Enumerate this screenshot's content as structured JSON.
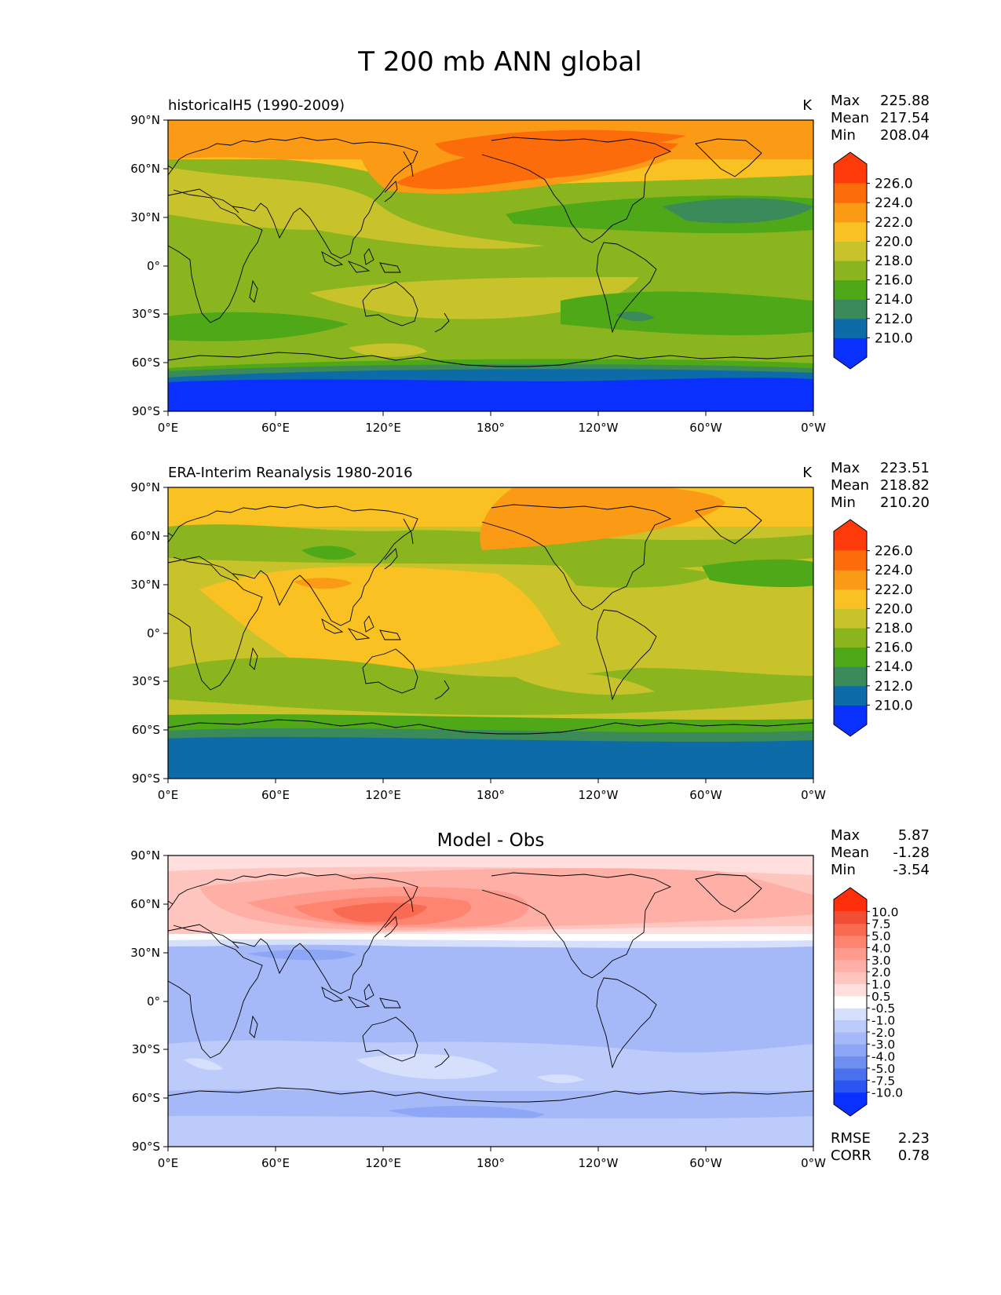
{
  "figure": {
    "title": "T 200 mb ANN global"
  },
  "axes": {
    "xticks": [
      "0°E",
      "60°E",
      "120°E",
      "180°",
      "120°W",
      "60°W",
      "0°W"
    ],
    "yticks": [
      "90°N",
      "60°N",
      "30°N",
      "0°",
      "30°S",
      "60°S",
      "90°S"
    ]
  },
  "colors": {
    "abs_levels": [
      "#0a30ff",
      "#0d6ba8",
      "#3a8a5a",
      "#4ea818",
      "#8ab51e",
      "#c8c32a",
      "#f9c121",
      "#fb9a14",
      "#fc6c0b",
      "#ff3a0a"
    ],
    "diff_levels": [
      "#0a30ff",
      "#2a55f0",
      "#4a70ee",
      "#6f8ff0",
      "#8da6f5",
      "#a5b8f7",
      "#bccbf9",
      "#d6e0fc",
      "#ffffff",
      "#ffdede",
      "#ffc6c0",
      "#ffb0a6",
      "#ff9a8c",
      "#ff8470",
      "#f96a52",
      "#f04f36",
      "#ff2d0a"
    ]
  },
  "chart_data": [
    {
      "type": "heatmap",
      "title": "historicalH5 (1990-2009)",
      "units": "K",
      "stats": {
        "max_label": "Max",
        "max": "225.88",
        "mean_label": "Mean",
        "mean": "217.54",
        "min_label": "Min",
        "min": "208.04"
      },
      "colorbar_ticks": [
        "226.0",
        "224.0",
        "222.0",
        "220.0",
        "218.0",
        "216.0",
        "214.0",
        "212.0",
        "210.0"
      ],
      "xlim": [
        0,
        360
      ],
      "ylim": [
        -90,
        90
      ]
    },
    {
      "type": "heatmap",
      "title": "ERA-Interim Reanalysis 1980-2016",
      "units": "K",
      "stats": {
        "max_label": "Max",
        "max": "223.51",
        "mean_label": "Mean",
        "mean": "218.82",
        "min_label": "Min",
        "min": "210.20"
      },
      "colorbar_ticks": [
        "226.0",
        "224.0",
        "222.0",
        "220.0",
        "218.0",
        "216.0",
        "214.0",
        "212.0",
        "210.0"
      ],
      "xlim": [
        0,
        360
      ],
      "ylim": [
        -90,
        90
      ]
    },
    {
      "type": "heatmap",
      "title": "Model - Obs",
      "units": "",
      "stats": {
        "max_label": "Max",
        "max": "5.87",
        "mean_label": "Mean",
        "mean": "-1.28",
        "min_label": "Min",
        "min": "-3.54"
      },
      "colorbar_ticks": [
        "10.0",
        "7.5",
        "5.0",
        "4.0",
        "3.0",
        "2.0",
        "1.0",
        "0.5",
        "-0.5",
        "-1.0",
        "-2.0",
        "-3.0",
        "-4.0",
        "-5.0",
        "-7.5",
        "-10.0"
      ],
      "metrics": {
        "rmse_label": "RMSE",
        "rmse": "2.23",
        "corr_label": "CORR",
        "corr": "0.78"
      },
      "xlim": [
        0,
        360
      ],
      "ylim": [
        -90,
        90
      ]
    }
  ]
}
